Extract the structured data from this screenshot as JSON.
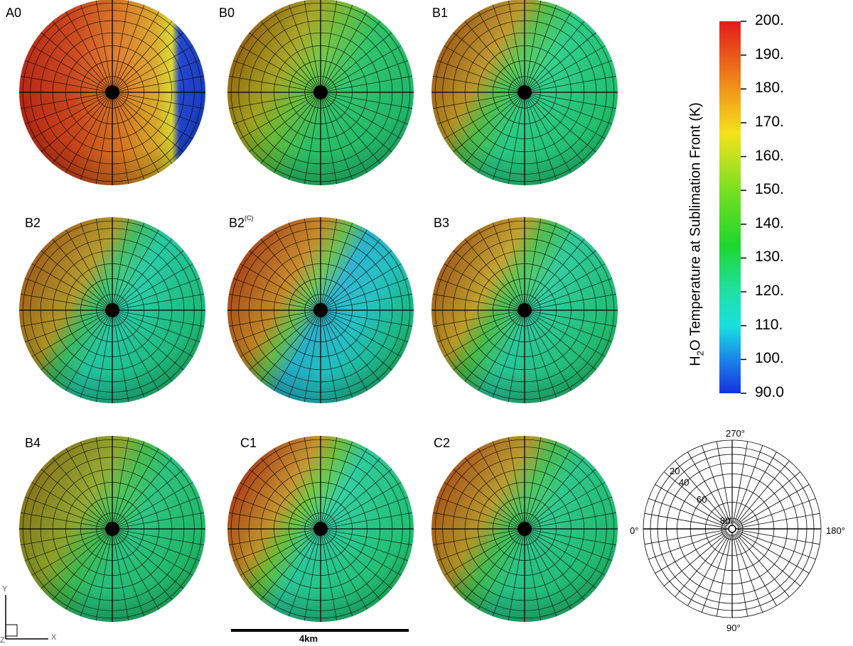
{
  "panels": [
    {
      "id": "A0",
      "label": "A0",
      "sup": "",
      "profile": "a0"
    },
    {
      "id": "B0",
      "label": "B0",
      "sup": "",
      "profile": "b0"
    },
    {
      "id": "B1",
      "label": "B1",
      "sup": "",
      "profile": "b1"
    },
    {
      "id": "B2",
      "label": "B2",
      "sup": "",
      "profile": "b2"
    },
    {
      "id": "B2C",
      "label": "B2",
      "sup": "(C)",
      "profile": "b2c"
    },
    {
      "id": "B3",
      "label": "B3",
      "sup": "",
      "profile": "b3"
    },
    {
      "id": "B4",
      "label": "B4",
      "sup": "",
      "profile": "b4"
    },
    {
      "id": "C1",
      "label": "C1",
      "sup": "",
      "profile": "c1"
    },
    {
      "id": "C2",
      "label": "C2",
      "sup": "",
      "profile": "c2"
    }
  ],
  "colorbar": {
    "title_pre": "H",
    "title_sub": "2",
    "title_post": "O Temperature at Sublimation Front (K)",
    "ticks": [
      "200.",
      "190.",
      "180.",
      "170.",
      "160.",
      "150.",
      "140.",
      "130.",
      "120.",
      "110.",
      "100.",
      "90.0"
    ]
  },
  "polar_legend": {
    "top": "270°",
    "bottom": "90°",
    "left": "0°",
    "right": "180°",
    "rings": [
      "20",
      "40",
      "60",
      "80"
    ]
  },
  "scale_bar": {
    "label": "4km"
  },
  "axes": {
    "y": "Y",
    "x": "X",
    "z": "Z"
  }
}
